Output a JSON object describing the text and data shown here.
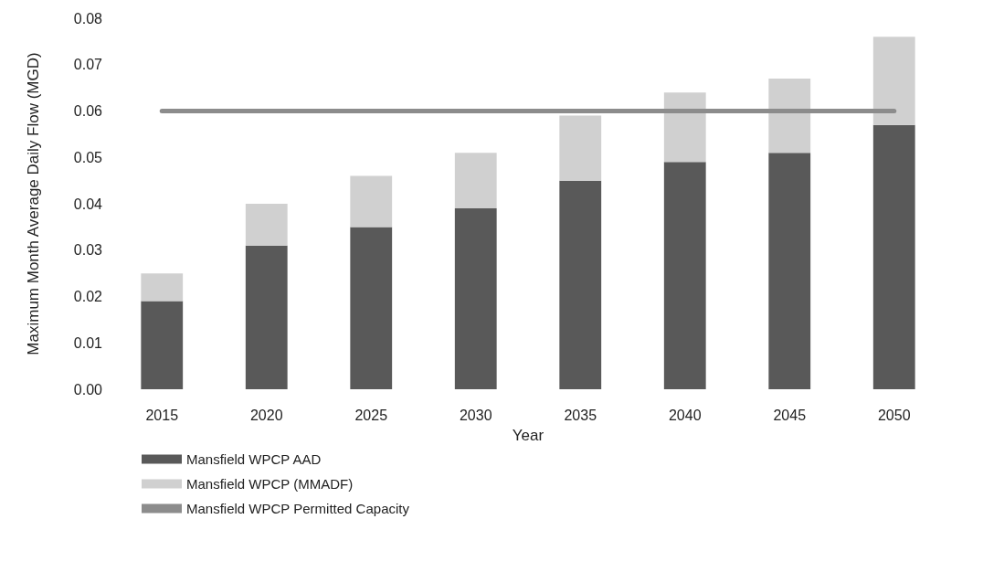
{
  "chart_data": {
    "type": "bar",
    "stacked": true,
    "xlabel": "Year",
    "ylabel": "Maximum Month Average Daily Flow (MGD)",
    "categories": [
      "2015",
      "2020",
      "2025",
      "2030",
      "2035",
      "2040",
      "2045",
      "2050"
    ],
    "series": [
      {
        "name": "Mansfield WPCP AAD",
        "color": "#595959",
        "values": [
          0.019,
          0.031,
          0.035,
          0.039,
          0.045,
          0.049,
          0.051,
          0.057
        ]
      },
      {
        "name": "Mansfield WPCP (MMADF)",
        "color": "#d0d0d0",
        "values": [
          0.006,
          0.009,
          0.011,
          0.012,
          0.014,
          0.015,
          0.016,
          0.019
        ]
      },
      {
        "name": "Mansfield WPCP Permitted Capacity",
        "type": "line",
        "color": "#8c8c8c",
        "values": [
          0.06,
          0.06,
          0.06,
          0.06,
          0.06,
          0.06,
          0.06,
          0.06
        ]
      }
    ],
    "ylim": [
      0,
      0.08
    ],
    "yticks": [
      {
        "value": 0,
        "label": "0.00"
      },
      0.01,
      0.02,
      0.03,
      0.04,
      0.05,
      0.06,
      0.07,
      0.08
    ],
    "grid": false,
    "legend": "bottom",
    "marker": "none"
  }
}
